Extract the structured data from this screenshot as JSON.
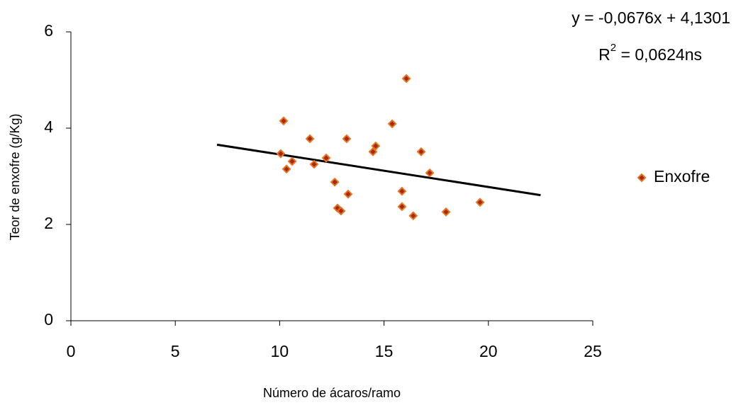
{
  "chart_data": {
    "type": "scatter",
    "x_label": "Número de ácaros/ramo",
    "y_label": "Teor de enxofre (g/Kg)",
    "series": [
      {
        "name": "Enxofre",
        "color": "#e8731e",
        "fill": "#a52a14",
        "x": [
          10.05,
          10.19,
          10.33,
          10.6,
          11.45,
          11.65,
          12.23,
          12.64,
          12.77,
          12.94,
          13.21,
          13.28,
          14.47,
          14.6,
          15.39,
          15.86,
          15.86,
          16.07,
          16.4,
          16.78,
          17.19,
          17.97,
          19.6
        ],
        "values": [
          3.47,
          4.15,
          3.15,
          3.31,
          3.78,
          3.25,
          3.38,
          2.88,
          2.34,
          2.28,
          3.78,
          2.63,
          3.51,
          3.63,
          4.09,
          2.69,
          2.37,
          5.03,
          2.18,
          3.51,
          3.07,
          2.26,
          2.46
        ]
      }
    ],
    "trendline": {
      "slope": -0.0676,
      "intercept": 4.1301,
      "x_range": [
        7,
        22.5
      ],
      "color": "#000000",
      "equation": "y = -0,0676x + 4,1301",
      "r2_prefix": "R",
      "r2_exponent": "2",
      "r2_suffix": " = 0,0624ns"
    },
    "xlim": [
      0,
      25
    ],
    "xticks": [
      0,
      5,
      10,
      15,
      20,
      25
    ],
    "ylim": [
      0,
      6
    ],
    "yticks": [
      0,
      2,
      4,
      6
    ]
  }
}
